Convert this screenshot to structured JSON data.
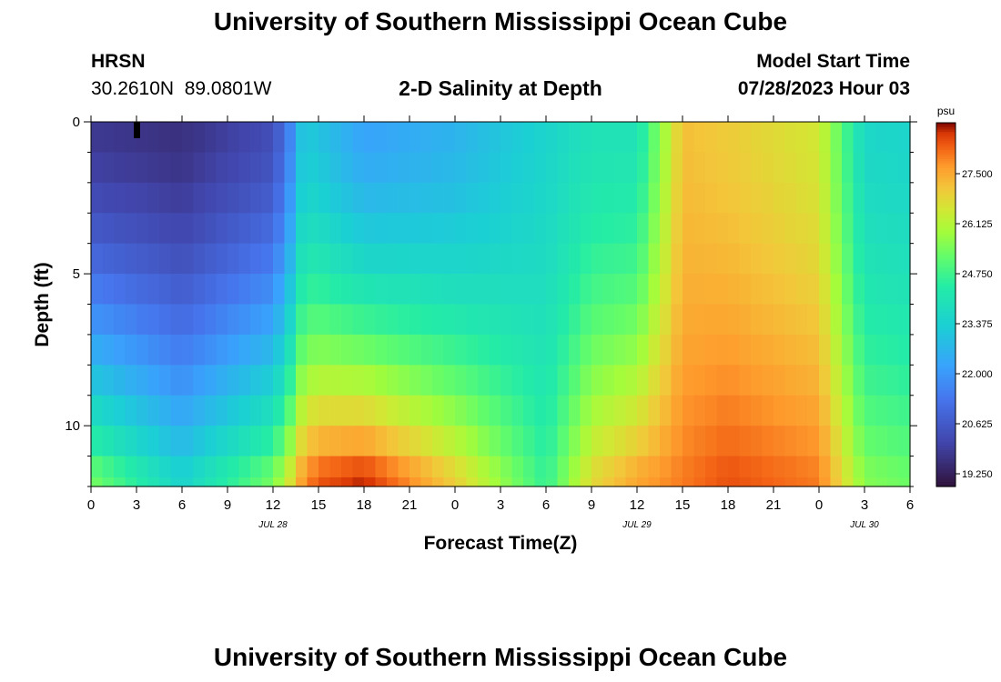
{
  "header": {
    "title": "University of Southern Mississippi Ocean Cube",
    "station": "HRSN",
    "coords": "30.2610N  89.0801W",
    "subtitle": "2-D Salinity at Depth",
    "model_label": "Model Start Time",
    "model_time": "07/28/2023 Hour 03"
  },
  "footer": {
    "title": "University of Southern Mississippi Ocean Cube"
  },
  "chart_data": {
    "type": "heatmap",
    "title": "2-D Salinity at Depth",
    "xlabel": "Forecast Time(Z)",
    "ylabel": "Depth (ft)",
    "x_range_hours": [
      0,
      54
    ],
    "x_step_hours": 0.75,
    "x_ticks": [
      "0",
      "3",
      "6",
      "9",
      "12",
      "15",
      "18",
      "21",
      "0",
      "3",
      "6",
      "9",
      "12",
      "15",
      "18",
      "21",
      "0",
      "3",
      "6"
    ],
    "date_labels": [
      {
        "hour": 12,
        "label": "JUL 28"
      },
      {
        "hour": 36,
        "label": "JUL 29"
      },
      {
        "hour": 51,
        "label": "JUL 30"
      }
    ],
    "y_range_ft": [
      0,
      12
    ],
    "y_ticks": [
      "0",
      "5",
      "10"
    ],
    "depth_levels_ft": [
      0.5,
      1.5,
      2.5,
      3.5,
      4.5,
      5.5,
      6.5,
      7.5,
      8.5,
      9.5,
      10.5,
      11.5,
      11.9
    ],
    "colorbar": {
      "unit": "psu",
      "min": 18.9,
      "max": 28.9,
      "ticks": [
        "27.500",
        "26.125",
        "24.750",
        "23.375",
        "22.000",
        "20.625",
        "19.250"
      ]
    },
    "marker_hour": 3,
    "profile_points": {
      "hours": [
        0,
        6,
        12,
        13,
        14,
        15,
        18,
        24,
        30,
        33,
        36,
        39,
        42,
        48,
        51,
        54
      ],
      "surface": [
        19.8,
        19.6,
        20.3,
        21.4,
        23.2,
        23.0,
        22.2,
        22.6,
        23.5,
        24.0,
        24.0,
        27.2,
        27.0,
        26.5,
        23.6,
        23.5
      ],
      "bottom": [
        25.5,
        23.5,
        25.5,
        26.5,
        27.8,
        28.4,
        28.8,
        27.0,
        24.6,
        26.8,
        27.6,
        28.0,
        28.4,
        28.0,
        25.6,
        25.3
      ]
    }
  }
}
